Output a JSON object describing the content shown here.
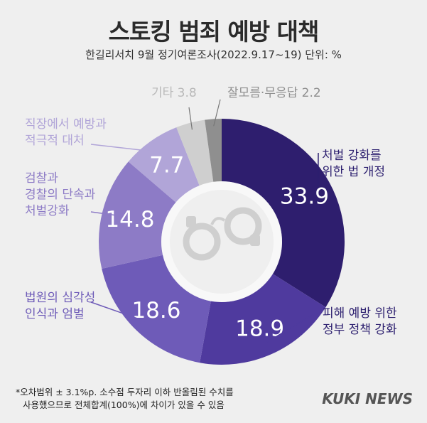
{
  "title": "스토킹 범죄 예방 대책",
  "subtitle": "한길리서치 9월 정기여론조사(2022.9.17~19) 단위: %",
  "chart_data": {
    "type": "pie",
    "donut": true,
    "slices": [
      {
        "label": [
          "처벌 강화를",
          "위한 법 개정"
        ],
        "value": 33.9,
        "color": "#2e1e6e"
      },
      {
        "label": [
          "피해 예방 위한",
          "정부 정책 강화"
        ],
        "value": 18.9,
        "color": "#4f3a9e"
      },
      {
        "label": [
          "법원의 심각성",
          "인식과 엄벌"
        ],
        "value": 18.6,
        "color": "#6e5bb8"
      },
      {
        "label": [
          "검찰과",
          "경찰의 단속과",
          "처벌강화"
        ],
        "value": 14.8,
        "color": "#8d7bc6"
      },
      {
        "label": [
          "직장에서 예방과",
          "적극적 대처"
        ],
        "value": 7.7,
        "color": "#b1a5d8"
      },
      {
        "label": [
          "기타"
        ],
        "value": 3.8,
        "color": "#cfcfcf"
      },
      {
        "label": [
          "잘모름·무응답"
        ],
        "value": 2.2,
        "color": "#8f8f8f"
      }
    ],
    "value_labels": [
      "33.9",
      "18.9",
      "18.6",
      "14.8",
      "7.7"
    ],
    "small_labels": [
      "기타 3.8",
      "잘모름·무응답 2.2"
    ]
  },
  "icon": "handcuffs-icon",
  "footnote": [
    "*오차범위 ± 3.1%p. 소수점 두자리 이하 반올림된 수치를",
    "사용했으므로 전체합계(100%)에 차이가 있을 수 있음"
  ],
  "logo": "KUKI NEWS"
}
